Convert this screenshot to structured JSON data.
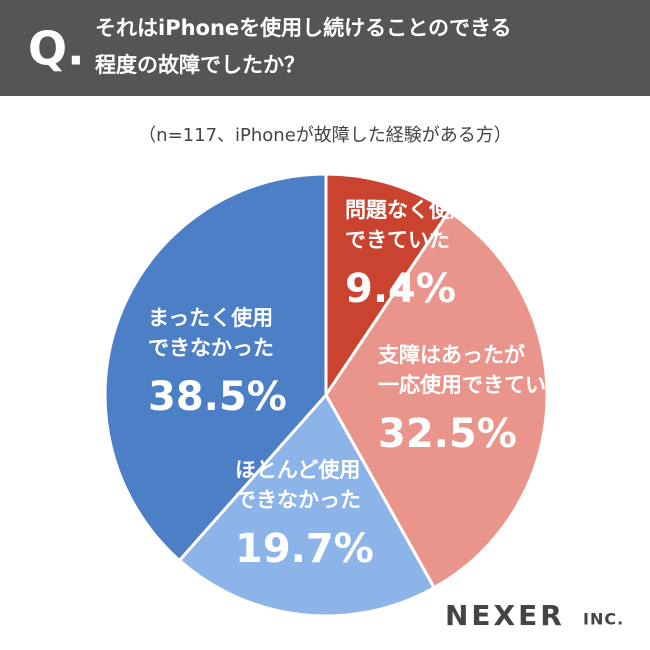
{
  "chart_data": {
    "type": "pie",
    "title": [
      "それはiPhoneを使用し続けることのできる",
      "程度の故障でしたか？"
    ],
    "subtitle": "（n=117、iPhoneが故障した経験がある方）",
    "categories": [
      [
        "問題なく使用",
        "できていた"
      ],
      [
        "支障はあったが",
        "一応使用できていた"
      ],
      [
        "ほとんど使用",
        "できなかった"
      ],
      [
        "まったく使用",
        "できなかった"
      ]
    ],
    "values": [
      9.4,
      32.5,
      19.7,
      38.5
    ],
    "value_labels": [
      "9.4%",
      "32.5%",
      "19.7%",
      "38.5%"
    ],
    "colors": [
      "#c9432f",
      "#ea958c",
      "#8db4e8",
      "#4d7fc6"
    ]
  },
  "header": {
    "mark": "Q."
  },
  "logo": {
    "name": "NEXER",
    "suffix": "INC."
  }
}
